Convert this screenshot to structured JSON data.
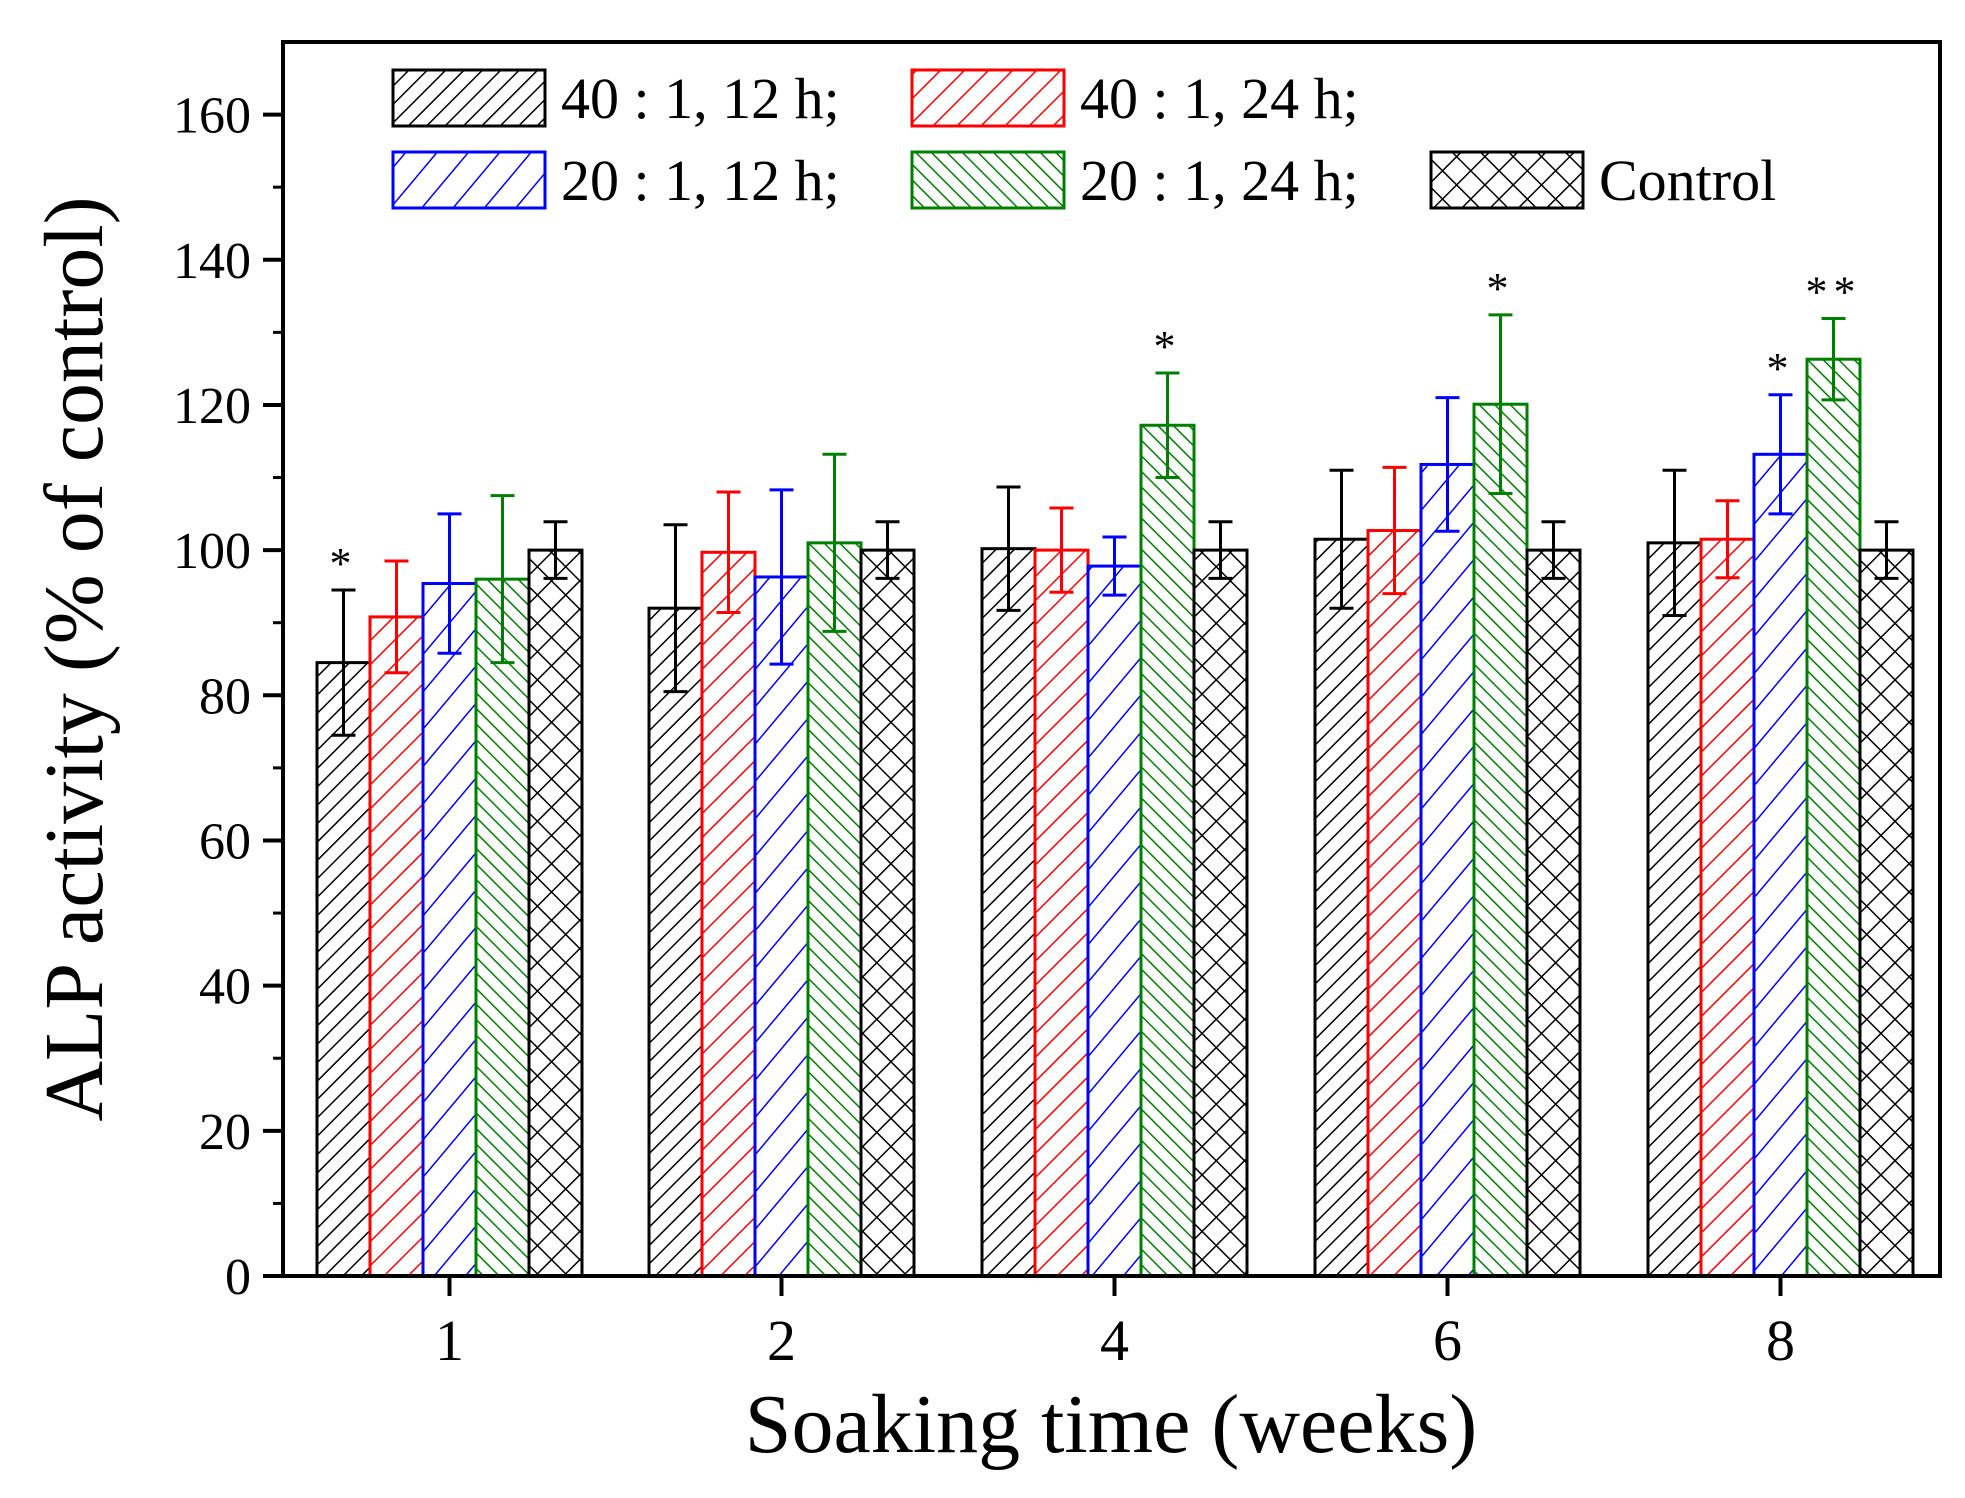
{
  "chart_data": {
    "type": "bar",
    "xlabel": "Soaking time (weeks)",
    "ylabel": "ALP activity (% of control)",
    "ylim": [
      0,
      170
    ],
    "yticks": [
      0,
      20,
      40,
      60,
      80,
      100,
      120,
      140,
      160
    ],
    "ytick_labels": [
      "0",
      "20",
      "40",
      "60",
      "80",
      "100",
      "120",
      "140",
      "160"
    ],
    "categories": [
      "1",
      "2",
      "4",
      "6",
      "8"
    ],
    "legend_position": "top",
    "series": [
      {
        "name": "40 : 1, 12 h;",
        "color": "#000000",
        "pattern": "diag-dense",
        "values": [
          84.5,
          92,
          100.2,
          101.5,
          101
        ],
        "errors": [
          10,
          11.5,
          8.5,
          9.5,
          10
        ],
        "annotations": [
          "*",
          "",
          "",
          "",
          ""
        ]
      },
      {
        "name": "40 : 1, 24 h;",
        "color": "#ff0000",
        "pattern": "diag",
        "values": [
          90.8,
          99.7,
          100,
          102.7,
          101.5
        ],
        "errors": [
          7.7,
          8.3,
          5.8,
          8.7,
          5.3
        ],
        "annotations": [
          "",
          "",
          "",
          "",
          ""
        ]
      },
      {
        "name": "20 : 1, 12 h;",
        "color": "#0000ff",
        "pattern": "diag-wide",
        "values": [
          95.4,
          96.3,
          97.8,
          111.8,
          113.2
        ],
        "errors": [
          9.6,
          12,
          4,
          9.2,
          8.2
        ],
        "annotations": [
          "",
          "",
          "",
          "",
          "*"
        ]
      },
      {
        "name": "20 : 1, 24 h;",
        "color": "#008000",
        "pattern": "back-diag",
        "values": [
          96,
          101,
          117.2,
          120.1,
          126.3
        ],
        "errors": [
          11.5,
          12.2,
          7.2,
          12.3,
          5.6
        ],
        "annotations": [
          "",
          "",
          "*",
          "*",
          "**"
        ]
      },
      {
        "name": "Control",
        "color": "#000000",
        "pattern": "cross",
        "values": [
          100,
          100,
          100,
          100,
          100
        ],
        "errors": [
          3.9,
          3.9,
          3.9,
          3.9,
          3.9
        ],
        "annotations": [
          "",
          "",
          "",
          "",
          ""
        ]
      }
    ]
  }
}
